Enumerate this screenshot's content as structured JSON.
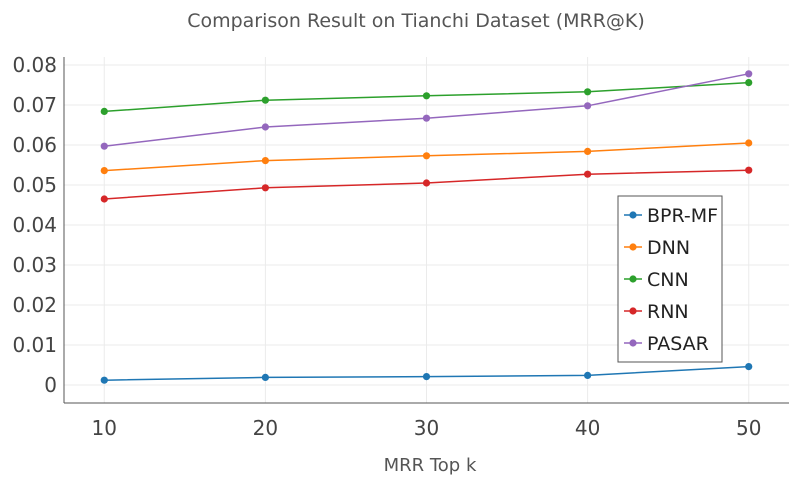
{
  "chart_data": {
    "type": "line",
    "title": "Comparison Result on Tianchi Dataset (MRR@K)",
    "xlabel": "MRR Top k",
    "ylabel": "",
    "x": [
      10,
      20,
      30,
      40,
      50
    ],
    "x_ticks": [
      "10",
      "20",
      "30",
      "40",
      "50"
    ],
    "xlim": [
      7.5,
      52.5
    ],
    "ylim": [
      -0.0045,
      0.082
    ],
    "y_ticks": [
      "0",
      "0.01",
      "0.02",
      "0.03",
      "0.04",
      "0.05",
      "0.06",
      "0.07",
      "0.08"
    ],
    "y_tick_values": [
      0,
      0.01,
      0.02,
      0.03,
      0.04,
      0.05,
      0.06,
      0.07,
      0.08
    ],
    "grid": true,
    "legend_position": "center-right",
    "series": [
      {
        "name": "BPR-MF",
        "color": "#1f77b4",
        "values": [
          0.0012,
          0.0019,
          0.0021,
          0.0024,
          0.0046
        ]
      },
      {
        "name": "DNN",
        "color": "#ff7f0e",
        "values": [
          0.0536,
          0.0561,
          0.0573,
          0.0584,
          0.0605
        ]
      },
      {
        "name": "CNN",
        "color": "#2ca02c",
        "values": [
          0.0684,
          0.0712,
          0.0723,
          0.0733,
          0.0756
        ]
      },
      {
        "name": "RNN",
        "color": "#d62728",
        "values": [
          0.0465,
          0.0493,
          0.0505,
          0.0527,
          0.0537
        ]
      },
      {
        "name": "PASAR",
        "color": "#9467bd",
        "values": [
          0.0597,
          0.0645,
          0.0667,
          0.0698,
          0.0778
        ]
      }
    ]
  }
}
